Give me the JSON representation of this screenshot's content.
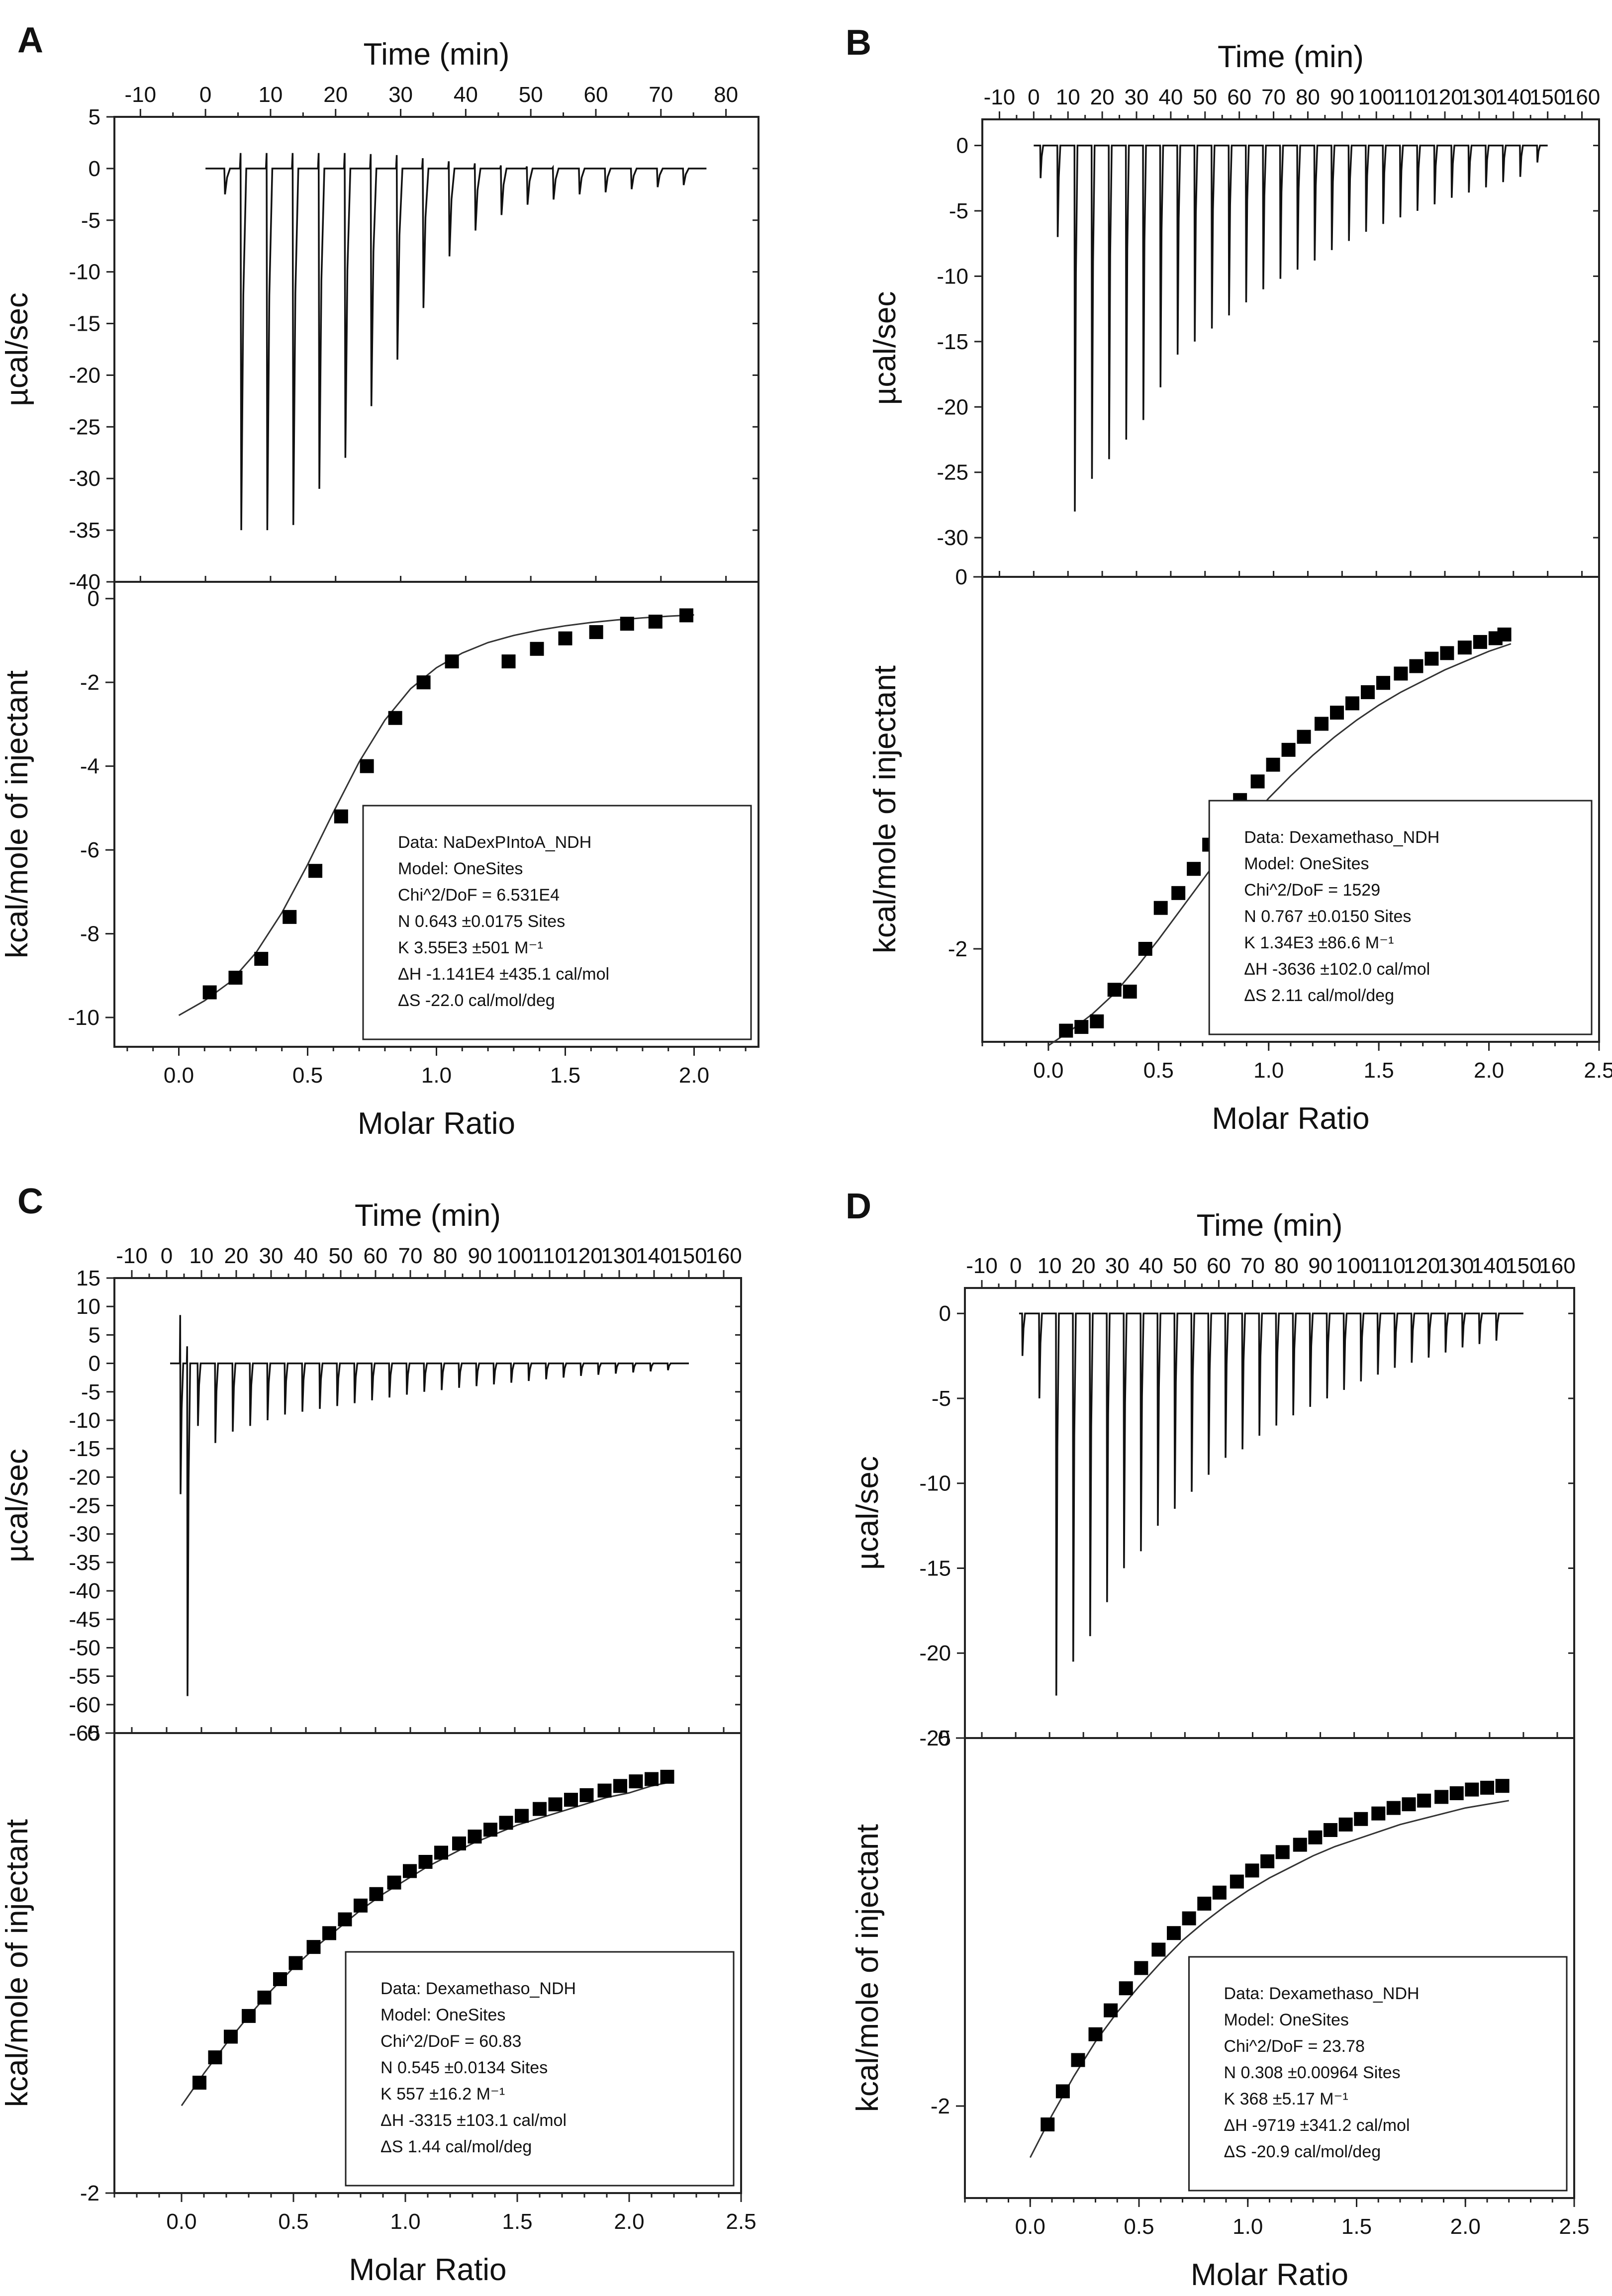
{
  "chart_data": [
    {
      "panel_label": "A",
      "type": "line",
      "top": {
        "xlabel": "Time (min)",
        "ylabel": "µcal/sec",
        "xlim": [
          -14,
          85
        ],
        "ylim": [
          -40,
          5
        ],
        "xticks": [
          -10,
          0,
          10,
          20,
          30,
          40,
          50,
          60,
          70,
          80
        ],
        "xticklabels": [
          "-10",
          "0",
          "10",
          "20",
          "30",
          "40",
          "50",
          "60",
          "70",
          "80"
        ],
        "yticks": [
          5,
          0,
          -5,
          -10,
          -15,
          -20,
          -25,
          -30,
          -35,
          -40
        ],
        "yticklabels": [
          "5",
          "0",
          "-5",
          "-10",
          "-15",
          "-20",
          "-25",
          "-30",
          "-35",
          "-40"
        ],
        "baseline_range": [
          0,
          77
        ],
        "injection_times": [
          3,
          5.5,
          9.5,
          13.5,
          17.5,
          21.5,
          25.5,
          29.5,
          33.5,
          37.5,
          41.5,
          45.5,
          49.5,
          53.5,
          57.5,
          61.5,
          65.5,
          69.5,
          73.5
        ],
        "peak_minima": [
          -2.5,
          -35,
          -35,
          -34.5,
          -31,
          -28,
          -23,
          -18.5,
          -13.5,
          -8.5,
          -6,
          -4.5,
          -3.5,
          -3,
          -2.5,
          -2.3,
          -2,
          -1.8,
          -1.6
        ],
        "spike_maxima": [
          0,
          1.5,
          1.5,
          1.5,
          1.5,
          1.5,
          1.4,
          1.3,
          1.0,
          0.7,
          0.5,
          0.3,
          0.2,
          0.1,
          0,
          0,
          0,
          0,
          0
        ]
      },
      "bottom": {
        "xlabel": "Molar Ratio",
        "ylabel": "kcal/mole of injectant",
        "xlim": [
          -0.25,
          2.25
        ],
        "ylim": [
          -10.7,
          0.4
        ],
        "xticks": [
          0.0,
          0.5,
          1.0,
          1.5,
          2.0
        ],
        "xticklabels": [
          "0.0",
          "0.5",
          "1.0",
          "1.5",
          "2.0"
        ],
        "yticks": [
          0,
          -2,
          -4,
          -6,
          -8,
          -10
        ],
        "yticklabels": [
          "0",
          "-2",
          "-4",
          "-6",
          "-8",
          "-10"
        ],
        "x": [
          0.12,
          0.22,
          0.32,
          0.43,
          0.53,
          0.63,
          0.73,
          0.84,
          0.95,
          1.06,
          1.28,
          1.39,
          1.5,
          1.62,
          1.74,
          1.85,
          1.97
        ],
        "y": [
          -9.4,
          -9.05,
          -8.6,
          -7.6,
          -6.5,
          -5.2,
          -4.0,
          -2.85,
          -2.0,
          -1.5,
          -1.5,
          -1.2,
          -0.95,
          -0.8,
          -0.6,
          -0.55,
          -0.4
        ],
        "fit_x": [
          0.0,
          0.1,
          0.2,
          0.3,
          0.4,
          0.5,
          0.6,
          0.7,
          0.8,
          0.9,
          1.0,
          1.1,
          1.2,
          1.3,
          1.4,
          1.5,
          1.6,
          1.7,
          1.8,
          1.9,
          2.0
        ],
        "fit_y": [
          -9.95,
          -9.6,
          -9.15,
          -8.45,
          -7.5,
          -6.35,
          -5.1,
          -3.9,
          -2.9,
          -2.15,
          -1.65,
          -1.3,
          -1.05,
          -0.88,
          -0.75,
          -0.65,
          -0.57,
          -0.51,
          -0.46,
          -0.42,
          -0.39
        ],
        "legend_position": "lower-right",
        "legend_lines": [
          "Data: NaDexPIntoA_NDH",
          "Model: OneSites",
          "Chi^2/DoF = 6.531E4",
          "N        0.643    ±0.0175 Sites",
          "K        3.55E3  ±501 M⁻¹",
          "ΔH      -1.141E4             ±435.1 cal/mol",
          "ΔS      -22.0 cal/mol/deg"
        ]
      }
    },
    {
      "panel_label": "B",
      "type": "line",
      "top": {
        "xlabel": "Time (min)",
        "ylabel": "µcal/sec",
        "xlim": [
          -15,
          165
        ],
        "ylim": [
          -33,
          2
        ],
        "xticks": [
          -10,
          0,
          10,
          20,
          30,
          40,
          50,
          60,
          70,
          80,
          90,
          100,
          110,
          120,
          130,
          140,
          150,
          160
        ],
        "xticklabels": [
          "-10",
          "0",
          "10",
          "20",
          "30",
          "40",
          "50",
          "60",
          "70",
          "80",
          "90",
          "100",
          "110",
          "120",
          "130",
          "140",
          "150",
          "160"
        ],
        "yticks": [
          0,
          -5,
          -10,
          -15,
          -20,
          -25,
          -30
        ],
        "yticklabels": [
          "0",
          "-5",
          "-10",
          "-15",
          "-20",
          "-25",
          "-30"
        ],
        "baseline_range": [
          0,
          150
        ],
        "injection_times": [
          2,
          7,
          12,
          17,
          22,
          27,
          32,
          37,
          42,
          47,
          52,
          57,
          62,
          67,
          72,
          77,
          82,
          87,
          92,
          97,
          102,
          107,
          112,
          117,
          122,
          127,
          132,
          137,
          142,
          147
        ],
        "peak_minima": [
          -2.5,
          -7,
          -28,
          -25.5,
          -24,
          -22.5,
          -21,
          -18.5,
          -16,
          -15,
          -14,
          -13,
          -12,
          -11,
          -10.2,
          -9.5,
          -8.8,
          -8,
          -7.3,
          -6.6,
          -6,
          -5.5,
          -5,
          -4.5,
          -4,
          -3.6,
          -3.2,
          -2.8,
          -2.4,
          -1.3
        ],
        "spike_maxima": []
      },
      "bottom": {
        "xlabel": "Molar Ratio",
        "ylabel": "kcal/mole of injectant",
        "xlim": [
          -0.3,
          2.5
        ],
        "ylim": [
          -2.5,
          0
        ],
        "xticks": [
          0.0,
          0.5,
          1.0,
          1.5,
          2.0,
          2.5
        ],
        "xticklabels": [
          "0.0",
          "0.5",
          "1.0",
          "1.5",
          "2.0",
          "2.5"
        ],
        "yticks": [
          0,
          -2
        ],
        "yticklabels": [
          "0",
          "-2"
        ],
        "x": [
          0.08,
          0.15,
          0.22,
          0.3,
          0.37,
          0.44,
          0.51,
          0.59,
          0.66,
          0.73,
          0.8,
          0.87,
          0.95,
          1.02,
          1.09,
          1.16,
          1.24,
          1.31,
          1.38,
          1.45,
          1.52,
          1.6,
          1.67,
          1.74,
          1.81,
          1.89,
          1.96,
          2.03,
          2.07
        ],
        "y": [
          -2.44,
          -2.42,
          -2.39,
          -2.22,
          -2.23,
          -2.0,
          -1.78,
          -1.7,
          -1.57,
          -1.44,
          -1.32,
          -1.2,
          -1.1,
          -1.01,
          -0.93,
          -0.86,
          -0.79,
          -0.73,
          -0.68,
          -0.62,
          -0.57,
          -0.52,
          -0.48,
          -0.44,
          -0.41,
          -0.38,
          -0.35,
          -0.33,
          -0.31
        ],
        "fit_x": [
          0.0,
          0.1,
          0.2,
          0.3,
          0.4,
          0.5,
          0.6,
          0.7,
          0.8,
          0.9,
          1.0,
          1.1,
          1.2,
          1.3,
          1.4,
          1.5,
          1.6,
          1.7,
          1.8,
          1.9,
          2.0,
          2.1
        ],
        "fit_y": [
          -2.52,
          -2.44,
          -2.35,
          -2.24,
          -2.1,
          -1.95,
          -1.79,
          -1.63,
          -1.47,
          -1.33,
          -1.19,
          -1.07,
          -0.96,
          -0.86,
          -0.77,
          -0.69,
          -0.62,
          -0.56,
          -0.5,
          -0.45,
          -0.4,
          -0.36
        ],
        "legend_position": "lower-right",
        "legend_lines": [
          "Data: Dexamethaso_NDH",
          "Model: OneSites",
          "Chi^2/DoF = 1529",
          "N        0.767    ±0.0150 Sites",
          "K        1.34E3  ±86.6 M⁻¹",
          "ΔH      -3636     ±102.0 cal/mol",
          "ΔS      2.11 cal/mol/deg"
        ]
      }
    },
    {
      "panel_label": "C",
      "type": "line",
      "top": {
        "xlabel": "Time (min)",
        "ylabel": "µcal/sec",
        "xlim": [
          -15,
          165
        ],
        "ylim": [
          -65,
          15
        ],
        "xticks": [
          -10,
          0,
          10,
          20,
          30,
          40,
          50,
          60,
          70,
          80,
          90,
          100,
          110,
          120,
          130,
          140,
          150,
          160
        ],
        "xticklabels": [
          "-10",
          "0",
          "10",
          "20",
          "30",
          "40",
          "50",
          "60",
          "70",
          "80",
          "90",
          "100",
          "110",
          "120",
          "130",
          "140",
          "150",
          "160"
        ],
        "yticks": [
          15,
          10,
          5,
          0,
          -5,
          -10,
          -15,
          -20,
          -25,
          -30,
          -35,
          -40,
          -45,
          -50,
          -55,
          -60,
          -65
        ],
        "yticklabels": [
          "15",
          "10",
          "5",
          "0",
          "-5",
          "-10",
          "-15",
          "-20",
          "-25",
          "-30",
          "-35",
          "-40",
          "-45",
          "-50",
          "-55",
          "-60",
          "-65"
        ],
        "baseline_range": [
          1,
          150
        ],
        "injection_times": [
          4,
          6,
          9,
          14,
          19,
          24,
          29,
          34,
          39,
          44,
          49,
          54,
          59,
          64,
          69,
          74,
          79,
          84,
          89,
          94,
          99,
          104,
          109,
          114,
          119,
          124,
          129,
          134,
          139,
          144
        ],
        "peak_minima": [
          -23,
          -58.5,
          -11,
          -14,
          -12,
          -11,
          -10,
          -9,
          -8.5,
          -8,
          -7.5,
          -7,
          -6.5,
          -6,
          -5.5,
          -5,
          -4.7,
          -4.3,
          -4,
          -3.7,
          -3.4,
          -3.1,
          -2.8,
          -2.5,
          -2.2,
          -2,
          -1.8,
          -1.6,
          -1.4,
          -1.2
        ],
        "spike_maxima": [
          8.5,
          3,
          0,
          0,
          0,
          0,
          0,
          0,
          0,
          0,
          0,
          0,
          0,
          0,
          0,
          0,
          0,
          0,
          0,
          0,
          0,
          0,
          0,
          0,
          0,
          0,
          0,
          0,
          0,
          0
        ]
      },
      "bottom": {
        "xlabel": "Molar Ratio",
        "ylabel": "kcal/mole of injectant",
        "xlim": [
          -0.3,
          2.5
        ],
        "ylim": [
          -2,
          0
        ],
        "xticks": [
          0.0,
          0.5,
          1.0,
          1.5,
          2.0,
          2.5
        ],
        "xticklabels": [
          "0.0",
          "0.5",
          "1.0",
          "1.5",
          "2.0",
          "2.5"
        ],
        "yticks": [
          0,
          -2
        ],
        "yticklabels": [
          "0",
          "-2"
        ],
        "x": [
          0.08,
          0.15,
          0.22,
          0.3,
          0.37,
          0.44,
          0.51,
          0.59,
          0.66,
          0.73,
          0.8,
          0.87,
          0.95,
          1.02,
          1.09,
          1.16,
          1.24,
          1.31,
          1.38,
          1.45,
          1.52,
          1.6,
          1.67,
          1.74,
          1.81,
          1.89,
          1.96,
          2.03,
          2.1,
          2.17
        ],
        "y": [
          -1.52,
          -1.41,
          -1.32,
          -1.23,
          -1.15,
          -1.07,
          -1.0,
          -0.93,
          -0.87,
          -0.81,
          -0.75,
          -0.7,
          -0.65,
          -0.6,
          -0.56,
          -0.52,
          -0.48,
          -0.45,
          -0.42,
          -0.39,
          -0.36,
          -0.33,
          -0.31,
          -0.29,
          -0.27,
          -0.25,
          -0.23,
          -0.21,
          -0.2,
          -0.19
        ],
        "fit_x": [
          0.0,
          0.1,
          0.2,
          0.3,
          0.4,
          0.5,
          0.6,
          0.7,
          0.8,
          0.9,
          1.0,
          1.1,
          1.2,
          1.3,
          1.4,
          1.5,
          1.6,
          1.7,
          1.8,
          1.9,
          2.0,
          2.1,
          2.2
        ],
        "fit_y": [
          -1.62,
          -1.48,
          -1.35,
          -1.23,
          -1.12,
          -1.02,
          -0.93,
          -0.85,
          -0.77,
          -0.7,
          -0.64,
          -0.58,
          -0.53,
          -0.48,
          -0.44,
          -0.4,
          -0.37,
          -0.34,
          -0.31,
          -0.28,
          -0.26,
          -0.23,
          -0.21
        ],
        "legend_position": "lower-right",
        "legend_lines": [
          "Data: Dexamethaso_NDH",
          "Model: OneSites",
          "Chi^2/DoF = 60.83",
          "N        0.545    ±0.0134 Sites",
          "K        557       ±16.2 M⁻¹",
          "ΔH      -3315     ±103.1 cal/mol",
          "ΔS      1.44 cal/mol/deg"
        ]
      }
    },
    {
      "panel_label": "D",
      "type": "line",
      "top": {
        "xlabel": "Time (min)",
        "ylabel": "µcal/sec",
        "xlim": [
          -15,
          165
        ],
        "ylim": [
          -25,
          1.5
        ],
        "xticks": [
          -10,
          0,
          10,
          20,
          30,
          40,
          50,
          60,
          70,
          80,
          90,
          100,
          110,
          120,
          130,
          140,
          150,
          160
        ],
        "xticklabels": [
          "-10",
          "0",
          "10",
          "20",
          "30",
          "40",
          "50",
          "60",
          "70",
          "80",
          "90",
          "100",
          "110",
          "120",
          "130",
          "140",
          "150",
          "160"
        ],
        "yticks": [
          0,
          -5,
          -10,
          -15,
          -20,
          -25
        ],
        "yticklabels": [
          "0",
          "-5",
          "-10",
          "-15",
          "-20",
          "-25"
        ],
        "baseline_range": [
          1,
          150
        ],
        "injection_times": [
          2,
          7,
          12,
          17,
          22,
          27,
          32,
          37,
          42,
          47,
          52,
          57,
          62,
          67,
          72,
          77,
          82,
          87,
          92,
          97,
          102,
          107,
          112,
          117,
          122,
          127,
          132,
          137,
          142
        ],
        "peak_minima": [
          -2.5,
          -5,
          -22.5,
          -20.5,
          -19,
          -17,
          -15,
          -14,
          -12.5,
          -11.5,
          -10.5,
          -9.5,
          -8.5,
          -8,
          -7.2,
          -6.6,
          -6,
          -5.5,
          -5,
          -4.5,
          -4,
          -3.6,
          -3.2,
          -2.9,
          -2.6,
          -2.3,
          -2,
          -1.8,
          -1.6
        ],
        "spike_maxima": []
      },
      "bottom": {
        "xlabel": "Molar Ratio",
        "ylabel": "kcal/mole of injectant",
        "xlim": [
          -0.3,
          2.5
        ],
        "ylim": [
          -2.5,
          0
        ],
        "xticks": [
          0.0,
          0.5,
          1.0,
          1.5,
          2.0,
          2.5
        ],
        "xticklabels": [
          "0.0",
          "0.5",
          "1.0",
          "1.5",
          "2.0",
          "2.5"
        ],
        "yticks": [
          0,
          -2
        ],
        "yticklabels": [
          "0",
          "-2"
        ],
        "x": [
          0.08,
          0.15,
          0.22,
          0.3,
          0.37,
          0.44,
          0.51,
          0.59,
          0.66,
          0.73,
          0.8,
          0.87,
          0.95,
          1.02,
          1.09,
          1.16,
          1.24,
          1.31,
          1.38,
          1.45,
          1.52,
          1.6,
          1.67,
          1.74,
          1.81,
          1.89,
          1.96,
          2.03,
          2.1,
          2.17
        ],
        "y": [
          -2.1,
          -1.92,
          -1.75,
          -1.61,
          -1.48,
          -1.36,
          -1.25,
          -1.15,
          -1.06,
          -0.98,
          -0.9,
          -0.84,
          -0.78,
          -0.72,
          -0.67,
          -0.62,
          -0.58,
          -0.54,
          -0.5,
          -0.47,
          -0.44,
          -0.41,
          -0.38,
          -0.36,
          -0.34,
          -0.32,
          -0.3,
          -0.28,
          -0.27,
          -0.26
        ],
        "fit_x": [
          0.0,
          0.1,
          0.2,
          0.3,
          0.4,
          0.5,
          0.6,
          0.7,
          0.8,
          0.9,
          1.0,
          1.1,
          1.2,
          1.3,
          1.4,
          1.5,
          1.6,
          1.7,
          1.8,
          1.9,
          2.0,
          2.1,
          2.2
        ],
        "fit_y": [
          -2.28,
          -2.05,
          -1.84,
          -1.65,
          -1.49,
          -1.35,
          -1.22,
          -1.1,
          -1.0,
          -0.91,
          -0.83,
          -0.76,
          -0.7,
          -0.64,
          -0.59,
          -0.55,
          -0.51,
          -0.47,
          -0.44,
          -0.41,
          -0.38,
          -0.36,
          -0.34
        ],
        "legend_position": "lower-right",
        "legend_lines": [
          "Data: Dexamethaso_NDH",
          "Model: OneSites",
          "Chi^2/DoF = 23.78",
          "N        0.308    ±0.00964 Sites",
          "K        368       ±5.17 M⁻¹",
          "ΔH      -9719     ±341.2 cal/mol",
          "ΔS      -20.9 cal/mol/deg"
        ]
      }
    }
  ]
}
